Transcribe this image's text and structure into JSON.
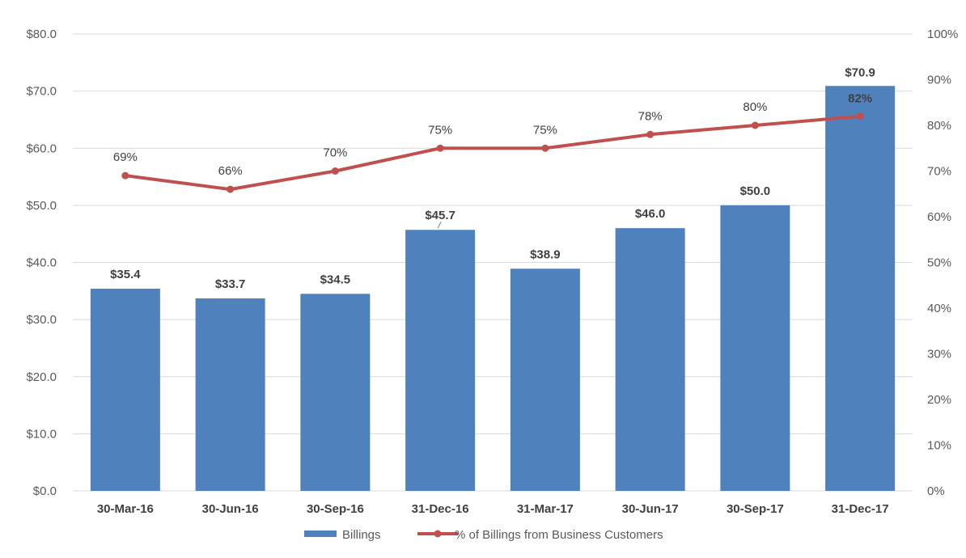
{
  "chart_data": {
    "type": "bar",
    "categories": [
      "30-Mar-16",
      "30-Jun-16",
      "30-Sep-16",
      "31-Dec-16",
      "31-Mar-17",
      "30-Jun-17",
      "30-Sep-17",
      "31-Dec-17"
    ],
    "series": [
      {
        "name": "Billings",
        "type": "bar",
        "axis": "left",
        "color": "#4f81bd",
        "values": [
          35.4,
          33.7,
          34.5,
          45.7,
          38.9,
          46.0,
          50.0,
          70.9
        ],
        "labels": [
          "$35.4",
          "$33.7",
          "$34.5",
          "$45.7",
          "$38.9",
          "$46.0",
          "$50.0",
          "$70.9"
        ]
      },
      {
        "name": "% of Billings from Business Customers",
        "type": "line",
        "axis": "right",
        "color": "#c0504d",
        "values": [
          69,
          66,
          70,
          75,
          75,
          78,
          80,
          82
        ],
        "labels": [
          "69%",
          "66%",
          "70%",
          "75%",
          "75%",
          "78%",
          "80%",
          "82%"
        ]
      }
    ],
    "y_left": {
      "min": 0,
      "max": 80,
      "ticks": [
        "$0.0",
        "$10.0",
        "$20.0",
        "$30.0",
        "$40.0",
        "$50.0",
        "$60.0",
        "$70.0",
        "$80.0"
      ]
    },
    "y_right": {
      "min": 0,
      "max": 100,
      "ticks": [
        "0%",
        "10%",
        "20%",
        "30%",
        "40%",
        "50%",
        "60%",
        "70%",
        "80%",
        "90%",
        "100%"
      ]
    },
    "grid": true,
    "legend_position": "bottom"
  }
}
